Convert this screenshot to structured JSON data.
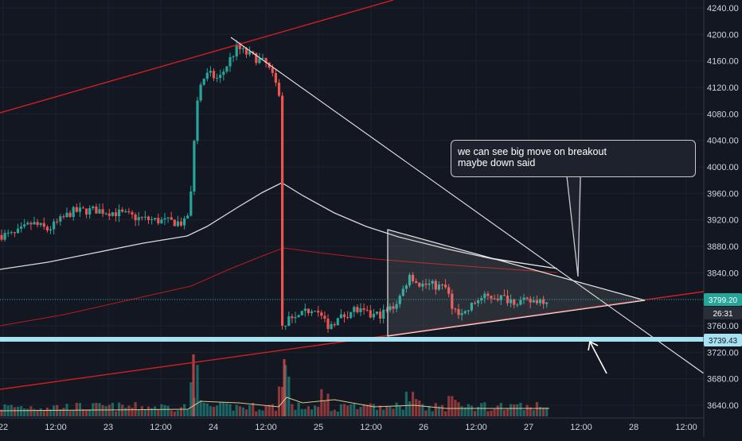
{
  "chart_data": {
    "type": "candlestick",
    "title": "",
    "price_axis": {
      "labels": [
        "4240.00",
        "4200.00",
        "4160.00",
        "4120.00",
        "4080.00",
        "4040.00",
        "4000.00",
        "3960.00",
        "3920.00",
        "3880.00",
        "3840.00",
        "3800.00",
        "3760.00",
        "3720.00",
        "3680.00",
        "3640.00"
      ],
      "range": [
        3625,
        4255
      ]
    },
    "time_axis": {
      "labels": [
        "22",
        "12:00",
        "23",
        "12:00",
        "24",
        "12:00",
        "25",
        "12:00",
        "26",
        "12:00",
        "27",
        "12:00",
        "28",
        "12:00"
      ]
    },
    "last_price": "3799.20",
    "countdown": "26:31",
    "support_level": "3739.43",
    "colors": {
      "background": "#131722",
      "up": "#26a69a",
      "down": "#ef5350",
      "trendline_red": "#d11f1f",
      "trendline_white": "#e6e6e6",
      "support": "#a8e2f2",
      "ma_white": "#d9d9d9",
      "ma_red": "#b71c1c"
    },
    "grid": true,
    "legend": "none"
  },
  "annotation": {
    "line1": "we can see big move on breakout",
    "line2": "maybe down said"
  }
}
